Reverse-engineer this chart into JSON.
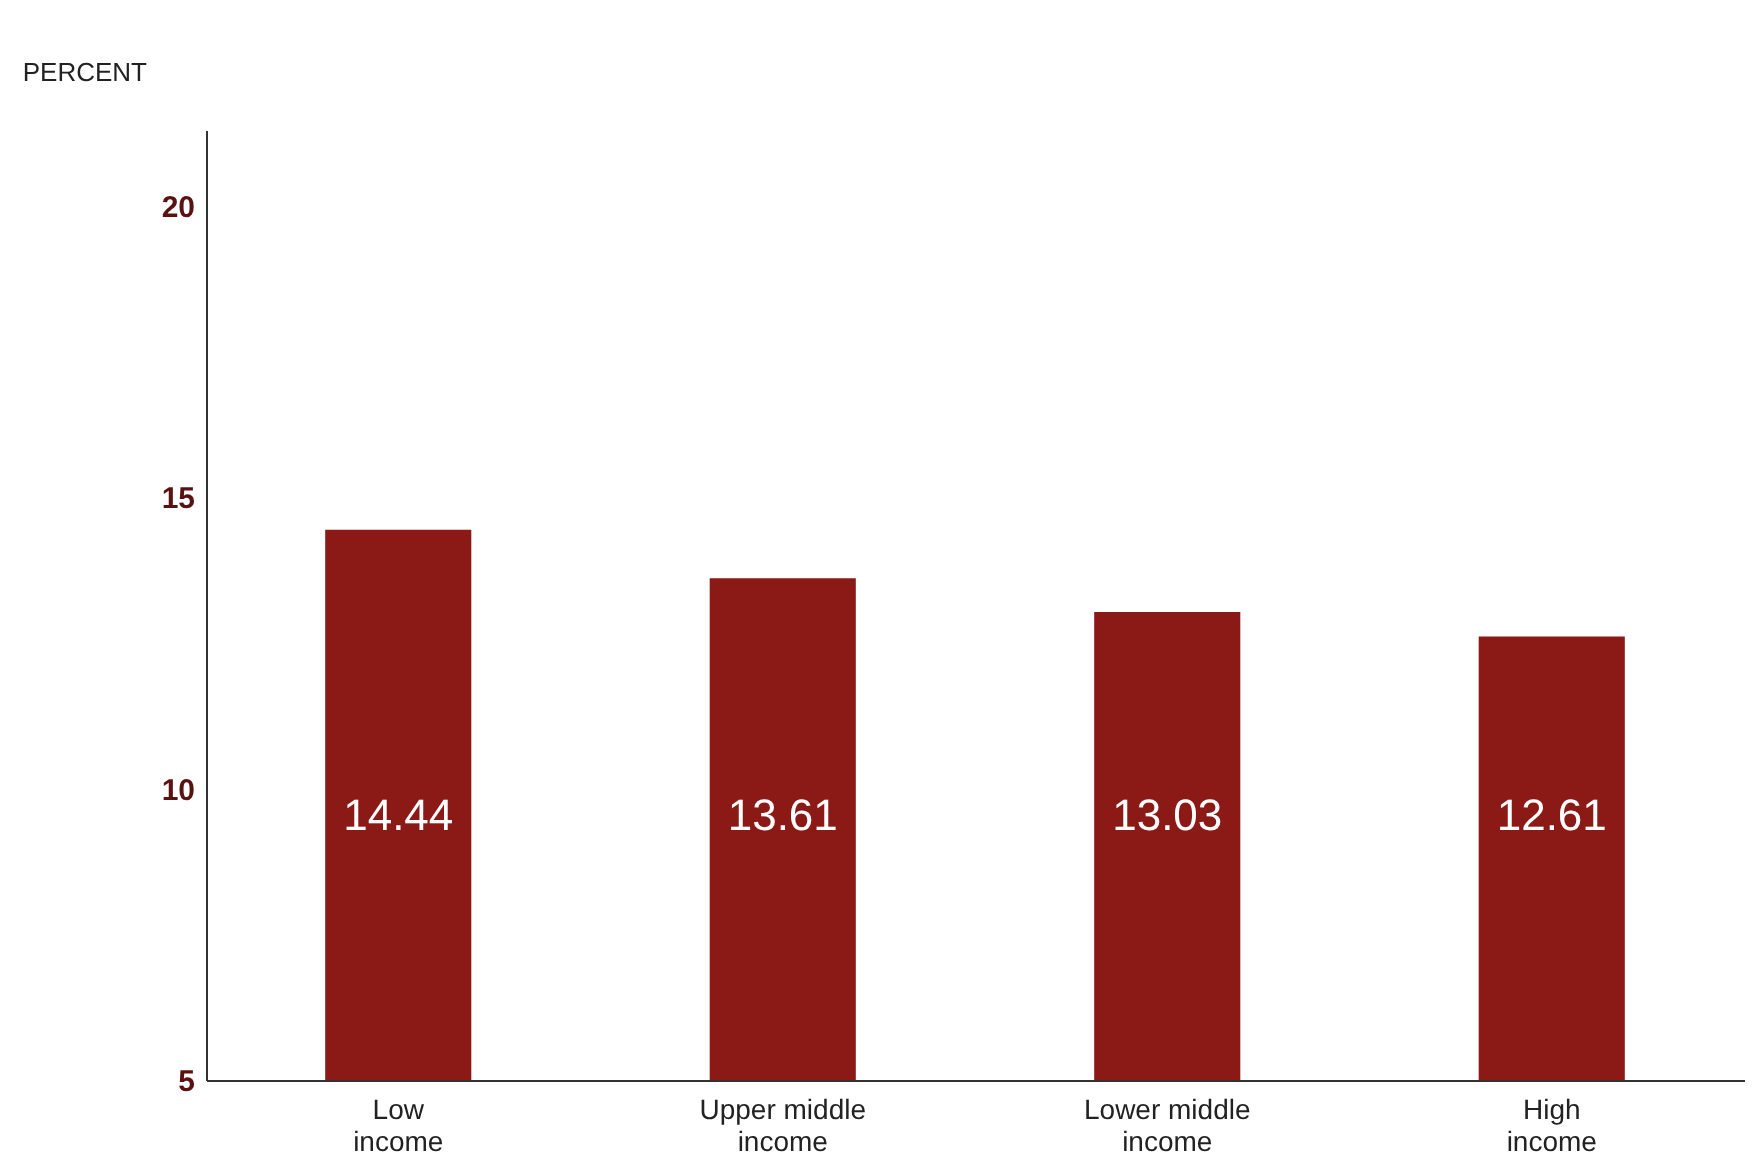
{
  "chart_data": {
    "type": "bar",
    "ylabel": "PERCENT",
    "categories": [
      "Low income",
      "Upper middle income",
      "Lower middle income",
      "High income"
    ],
    "values": [
      14.44,
      13.61,
      13.03,
      12.61
    ],
    "color": "#8b1a17",
    "ylim": [
      5,
      21.3
    ],
    "yticks": [
      5,
      10,
      15,
      20
    ],
    "grid": false,
    "data_labels": true
  }
}
